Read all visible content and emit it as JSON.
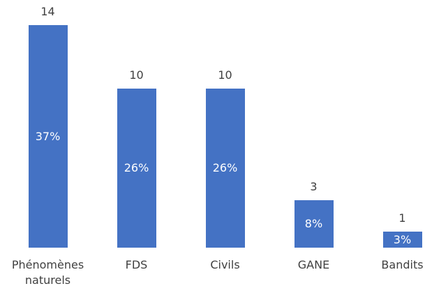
{
  "chart_data": {
    "type": "bar",
    "categories": [
      "Phénomènes naturels",
      "FDS",
      "Civils",
      "GANE",
      "Bandits"
    ],
    "values": [
      14,
      10,
      10,
      3,
      1
    ],
    "share_labels": [
      "37%",
      "26%",
      "26%",
      "8%",
      "3%"
    ],
    "color": "#4472c4"
  }
}
